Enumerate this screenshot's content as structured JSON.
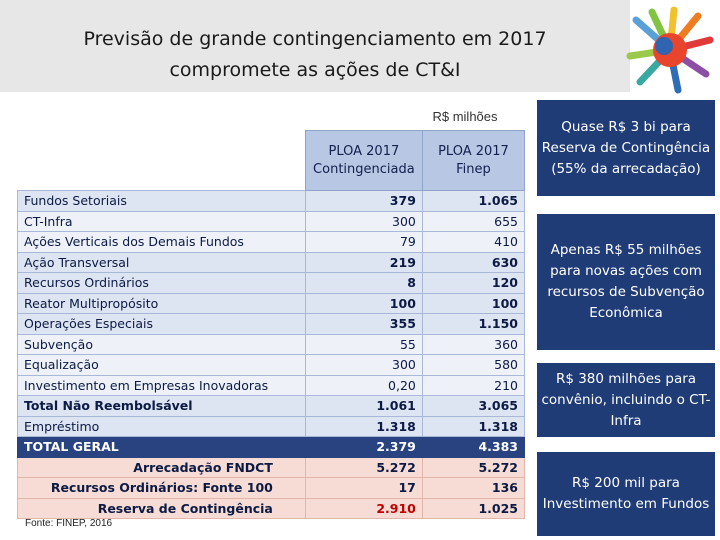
{
  "slide": {
    "title_line1": "Previsão de grande contingenciamento em 2017",
    "title_line2": "compromete as ações de CT&I",
    "unit_label": "R$ milhões",
    "source": "Fonte: FINEP, 2016"
  },
  "table": {
    "headers": [
      {
        "line1": "PLOA 2017",
        "line2": "Contingenciada"
      },
      {
        "line1": "PLOA 2017",
        "line2": "Finep"
      }
    ],
    "rows": [
      {
        "label": "Fundos Setoriais",
        "v1": "379",
        "v2": "1.065"
      },
      {
        "label": "CT-Infra",
        "v1": "300",
        "v2": "655"
      },
      {
        "label": "Ações Verticais dos Demais Fundos",
        "v1": "79",
        "v2": "410"
      },
      {
        "label": "Ação Transversal",
        "v1": "219",
        "v2": "630"
      },
      {
        "label": "Recursos Ordinários",
        "v1": "8",
        "v2": "120"
      },
      {
        "label": "Reator Multipropósito",
        "v1": "100",
        "v2": "100"
      },
      {
        "label": "Operações Especiais",
        "v1": "355",
        "v2": "1.150"
      },
      {
        "label": "Subvenção",
        "v1": "55",
        "v2": "360"
      },
      {
        "label": "Equalização",
        "v1": "300",
        "v2": "580"
      },
      {
        "label": "Investimento em Empresas Inovadoras",
        "v1": "0,20",
        "v2": "210"
      },
      {
        "label": "Total Não Reembolsável",
        "v1": "1.061",
        "v2": "3.065"
      },
      {
        "label": "Empréstimo",
        "v1": "1.318",
        "v2": "1.318"
      },
      {
        "label": "TOTAL GERAL",
        "v1": "2.379",
        "v2": "4.383"
      },
      {
        "label": "Arrecadação FNDCT",
        "v1": "5.272",
        "v2": "5.272"
      },
      {
        "label": "Recursos Ordinários: Fonte 100",
        "v1": "17",
        "v2": "136"
      },
      {
        "label": "Reserva de Contingência",
        "v1": "2.910",
        "v2": "1.025"
      }
    ]
  },
  "callouts": [
    "Quase R$ 3 bi para Reserva de Contingência (55% da arrecadação)",
    "Apenas R$ 55 milhões para novas ações com recursos de  Subvenção Econômica",
    "R$ 380 milhões para convênio, incluindo o CT-Infra",
    "R$ 200 mil para Investimento em Fundos"
  ],
  "colors": {
    "header_fill": "#b8c7e3",
    "total_fill": "#28437f",
    "callout_fill": "#1f3c76",
    "bottom_fill": "#f6dcd4",
    "highlight_text": "#c00000"
  }
}
